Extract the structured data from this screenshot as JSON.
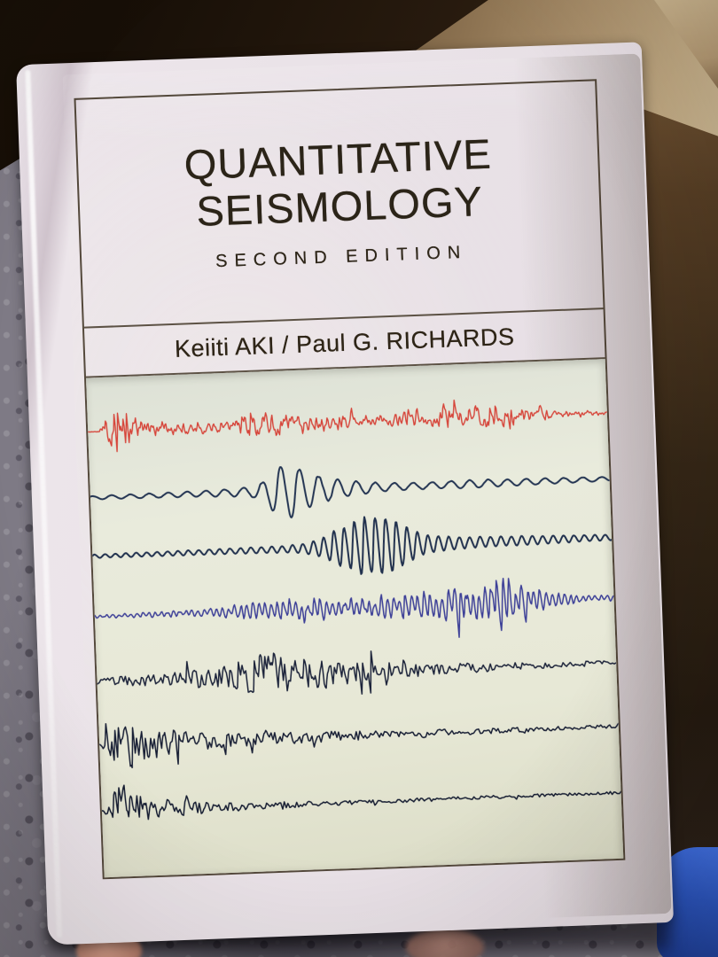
{
  "scene": {
    "palette": {
      "carpet": "#7e7a85",
      "deep_shadow": "#1c1209",
      "cardboard_side": "#553d24",
      "cardboard_top": "#c0a983",
      "cardboard_flap": "#dcc79e",
      "blue_object": "#2a55c0",
      "finger_skin": "#b57f6d",
      "page_edge": "#e6dee4"
    }
  },
  "book": {
    "title_line1": "QUANTITATIVE",
    "title_line2": "SEISMOLOGY",
    "edition": "SECOND EDITION",
    "authors": "Keiiti AKI / Paul G. RICHARDS",
    "jacket_color": "#bda578",
    "panel_color": "#e7e8d6",
    "frame_color": "#382d1c",
    "text_color": "#2b2418"
  },
  "seismograms": {
    "panel_background": "#e7e8d6",
    "traces": [
      {
        "name": "trace-1-red",
        "color": "#d6453a",
        "width": 1.4,
        "baseline": 0.108,
        "freq": 0.3,
        "noise": 0.78,
        "spike": 0.05,
        "seed": 11,
        "envelope": [
          [
            0,
            0.4
          ],
          [
            0.022,
            0.4
          ],
          [
            0.03,
            14
          ],
          [
            0.04,
            27
          ],
          [
            0.06,
            26
          ],
          [
            0.08,
            18
          ],
          [
            0.1,
            13
          ],
          [
            0.13,
            9
          ],
          [
            0.17,
            8
          ],
          [
            0.22,
            7
          ],
          [
            0.27,
            8
          ],
          [
            0.3,
            15
          ],
          [
            0.33,
            19
          ],
          [
            0.36,
            13
          ],
          [
            0.4,
            12
          ],
          [
            0.44,
            11
          ],
          [
            0.48,
            9
          ],
          [
            0.52,
            8
          ],
          [
            0.56,
            9
          ],
          [
            0.6,
            10
          ],
          [
            0.64,
            11
          ],
          [
            0.68,
            12
          ],
          [
            0.72,
            14
          ],
          [
            0.76,
            16
          ],
          [
            0.8,
            17
          ],
          [
            0.83,
            13
          ],
          [
            0.86,
            8
          ],
          [
            0.89,
            5
          ],
          [
            0.93,
            4
          ],
          [
            1,
            3
          ]
        ]
      },
      {
        "name": "trace-2-navy-wavelet",
        "color": "#233452",
        "width": 2.0,
        "baseline": 0.24,
        "freq": 0.047,
        "noise": 0.08,
        "spike": 0,
        "seed": 22,
        "envelope": [
          [
            0,
            2
          ],
          [
            0.08,
            2.5
          ],
          [
            0.16,
            3
          ],
          [
            0.22,
            3.5
          ],
          [
            0.27,
            4.5
          ],
          [
            0.31,
            6
          ],
          [
            0.335,
            12
          ],
          [
            0.36,
            30
          ],
          [
            0.385,
            33
          ],
          [
            0.41,
            24
          ],
          [
            0.44,
            16
          ],
          [
            0.47,
            12
          ],
          [
            0.5,
            9
          ],
          [
            0.53,
            7
          ],
          [
            0.57,
            5
          ],
          [
            0.62,
            4
          ],
          [
            0.68,
            4
          ],
          [
            0.74,
            5
          ],
          [
            0.8,
            4
          ],
          [
            0.87,
            3.5
          ],
          [
            0.93,
            3
          ],
          [
            1,
            2.5
          ]
        ]
      },
      {
        "name": "trace-3-navy-packet",
        "color": "#20304d",
        "width": 2.0,
        "baseline": 0.357,
        "freq": 0.085,
        "noise": 0.08,
        "spike": 0,
        "seed": 33,
        "envelope": [
          [
            0,
            2
          ],
          [
            0.1,
            2.5
          ],
          [
            0.2,
            3
          ],
          [
            0.3,
            3.5
          ],
          [
            0.37,
            4
          ],
          [
            0.41,
            6
          ],
          [
            0.45,
            14
          ],
          [
            0.49,
            26
          ],
          [
            0.52,
            33
          ],
          [
            0.55,
            36
          ],
          [
            0.58,
            31
          ],
          [
            0.61,
            20
          ],
          [
            0.64,
            12
          ],
          [
            0.67,
            9
          ],
          [
            0.71,
            7
          ],
          [
            0.76,
            6
          ],
          [
            0.82,
            5.5
          ],
          [
            0.88,
            5
          ],
          [
            0.94,
            4
          ],
          [
            1,
            3.5
          ]
        ]
      },
      {
        "name": "trace-4-blue-spindle",
        "color": "#3c3f97",
        "width": 1.5,
        "baseline": 0.478,
        "freq": 0.145,
        "noise": 0.42,
        "spike": 0.02,
        "seed": 44,
        "envelope": [
          [
            0,
            2
          ],
          [
            0.06,
            2.5
          ],
          [
            0.12,
            3.5
          ],
          [
            0.18,
            5
          ],
          [
            0.23,
            7
          ],
          [
            0.28,
            9
          ],
          [
            0.33,
            11
          ],
          [
            0.38,
            13
          ],
          [
            0.43,
            15
          ],
          [
            0.47,
            13
          ],
          [
            0.51,
            14
          ],
          [
            0.55,
            15
          ],
          [
            0.59,
            16
          ],
          [
            0.63,
            18
          ],
          [
            0.67,
            21
          ],
          [
            0.7,
            25
          ],
          [
            0.73,
            29
          ],
          [
            0.76,
            33
          ],
          [
            0.79,
            34
          ],
          [
            0.82,
            29
          ],
          [
            0.845,
            19
          ],
          [
            0.87,
            10
          ],
          [
            0.9,
            7
          ],
          [
            0.94,
            5
          ],
          [
            1,
            4
          ]
        ]
      },
      {
        "name": "trace-5-dark-burst",
        "color": "#1b2239",
        "width": 1.5,
        "baseline": 0.608,
        "freq": 0.24,
        "noise": 0.9,
        "spike": 0.06,
        "seed": 55,
        "envelope": [
          [
            0,
            4
          ],
          [
            0.05,
            6
          ],
          [
            0.1,
            7
          ],
          [
            0.15,
            8
          ],
          [
            0.2,
            10
          ],
          [
            0.24,
            13
          ],
          [
            0.27,
            18
          ],
          [
            0.3,
            25
          ],
          [
            0.33,
            31
          ],
          [
            0.36,
            28
          ],
          [
            0.39,
            23
          ],
          [
            0.43,
            18
          ],
          [
            0.47,
            15
          ],
          [
            0.51,
            12
          ],
          [
            0.55,
            10
          ],
          [
            0.6,
            8
          ],
          [
            0.66,
            6.5
          ],
          [
            0.72,
            5.5
          ],
          [
            0.79,
            4.5
          ],
          [
            0.86,
            4
          ],
          [
            0.93,
            3.5
          ],
          [
            1,
            3
          ]
        ]
      },
      {
        "name": "trace-6-onset-decay",
        "color": "#171e34",
        "width": 1.5,
        "baseline": 0.735,
        "freq": 0.22,
        "noise": 0.9,
        "spike": 0.05,
        "seed": 66,
        "envelope": [
          [
            0,
            1
          ],
          [
            0.01,
            5
          ],
          [
            0.02,
            22
          ],
          [
            0.04,
            34
          ],
          [
            0.06,
            30
          ],
          [
            0.08,
            25
          ],
          [
            0.1,
            21
          ],
          [
            0.13,
            16
          ],
          [
            0.16,
            13
          ],
          [
            0.2,
            11
          ],
          [
            0.25,
            9.5
          ],
          [
            0.3,
            8.5
          ],
          [
            0.36,
            7.5
          ],
          [
            0.42,
            6.5
          ],
          [
            0.49,
            5.5
          ],
          [
            0.56,
            4.5
          ],
          [
            0.63,
            4
          ],
          [
            0.71,
            3.5
          ],
          [
            0.79,
            3
          ],
          [
            0.88,
            2.5
          ],
          [
            1,
            2
          ]
        ]
      },
      {
        "name": "trace-7-onset-decay",
        "color": "#151c31",
        "width": 1.5,
        "baseline": 0.868,
        "freq": 0.22,
        "noise": 0.9,
        "spike": 0.04,
        "seed": 77,
        "envelope": [
          [
            0,
            1
          ],
          [
            0.012,
            7
          ],
          [
            0.025,
            24
          ],
          [
            0.045,
            36
          ],
          [
            0.07,
            27
          ],
          [
            0.09,
            19
          ],
          [
            0.12,
            13
          ],
          [
            0.15,
            10
          ],
          [
            0.19,
            7.5
          ],
          [
            0.24,
            5.5
          ],
          [
            0.3,
            4.5
          ],
          [
            0.37,
            3.5
          ],
          [
            0.45,
            3
          ],
          [
            0.54,
            2.5
          ],
          [
            0.63,
            2.2
          ],
          [
            0.72,
            2
          ],
          [
            0.82,
            1.8
          ],
          [
            1,
            1.5
          ]
        ]
      }
    ]
  }
}
